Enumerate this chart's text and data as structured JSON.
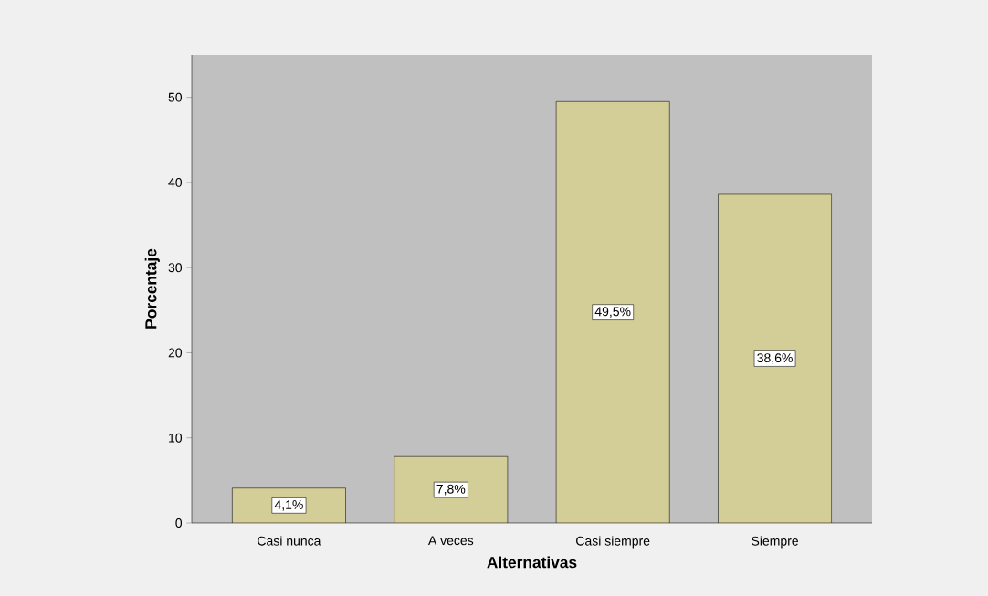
{
  "chart_data": {
    "type": "bar",
    "xlabel": "Alternativas",
    "ylabel": "Porcentaje",
    "categories": [
      "Casi nunca",
      "A veces",
      "Casi siempre",
      "Siempre"
    ],
    "values": [
      4.1,
      7.8,
      49.5,
      38.6
    ],
    "value_labels": [
      "4,1%",
      "7,8%",
      "49,5%",
      "38,6%"
    ],
    "color": "#d3cd98",
    "ylim": [
      0,
      55
    ],
    "yticks": [
      0,
      10,
      20,
      30,
      40,
      50
    ],
    "grid": false
  }
}
